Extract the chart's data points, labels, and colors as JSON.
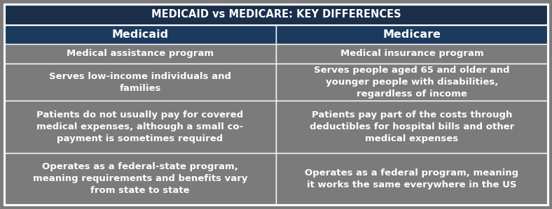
{
  "title": "MEDICAID vs MEDICARE: KEY DIFFERENCES",
  "title_bg": "#1b2f4b",
  "title_color": "#ffffff",
  "header_bg": "#1b3a5e",
  "header_color": "#ffffff",
  "cell_bg": "#7b7b7b",
  "cell_color": "#ffffff",
  "border_color": "#ffffff",
  "col_headers": [
    "Medicaid",
    "Medicare"
  ],
  "rows": [
    [
      "Medical assistance program",
      "Medical insurance program"
    ],
    [
      "Serves low-income individuals and\nfamilies",
      "Serves people aged 65 and older and\nyounger people with disabilities,\nregardless of income"
    ],
    [
      "Patients do not usually pay for covered\nmedical expenses, although a small co-\npayment is sometimes required",
      "Patients pay part of the costs through\ndeductibles for hospital bills and other\nmedical expenses"
    ],
    [
      "Operates as a federal-state program,\nmeaning requirements and benefits vary\nfrom state to state",
      "Operates as a federal program, meaning\nit works the same everywhere in the US"
    ]
  ],
  "title_fontsize": 10.5,
  "header_fontsize": 11.5,
  "cell_fontsize": 9.5,
  "figsize": [
    7.88,
    2.99
  ],
  "dpi": 100,
  "outer_border_color": "#c8c8c8",
  "outer_lw": 1.5,
  "inner_lw": 1.0
}
